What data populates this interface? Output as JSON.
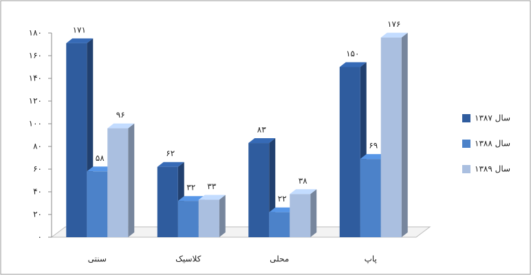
{
  "chart_data": {
    "type": "bar3d",
    "categories": [
      "سنتی",
      "کلاسیک",
      "محلی",
      "پاپ"
    ],
    "series": [
      {
        "name": "سال ۱۳۸۷",
        "color": "#2f5c9e",
        "values": [
          171,
          62,
          83,
          150
        ],
        "value_labels": [
          "۱۷۱",
          "۶۲",
          "۸۳",
          "۱۵۰"
        ]
      },
      {
        "name": "سال ۱۳۸۸",
        "color": "#4c82c9",
        "values": [
          58,
          32,
          22,
          69
        ],
        "value_labels": [
          "۵۸",
          "۳۲",
          "۲۲",
          "۶۹"
        ]
      },
      {
        "name": "سال ۱۳۸۹",
        "color": "#aabfe0",
        "values": [
          96,
          33,
          38,
          176
        ],
        "value_labels": [
          "۹۶",
          "۳۳",
          "۳۸",
          "۱۷۶"
        ]
      }
    ],
    "ylim": [
      0,
      180
    ],
    "yticks": [
      {
        "value": 0,
        "label": "۰"
      },
      {
        "value": 20,
        "label": "۲۰"
      },
      {
        "value": 40,
        "label": "۴۰"
      },
      {
        "value": 60,
        "label": "۶۰"
      },
      {
        "value": 80,
        "label": "۸۰"
      },
      {
        "value": 100,
        "label": "۱۰۰"
      },
      {
        "value": 120,
        "label": "۱۲۰"
      },
      {
        "value": 140,
        "label": "۱۴۰"
      },
      {
        "value": 160,
        "label": "۱۶۰"
      },
      {
        "value": 180,
        "label": "۱۸۰"
      }
    ],
    "legend": "right"
  }
}
